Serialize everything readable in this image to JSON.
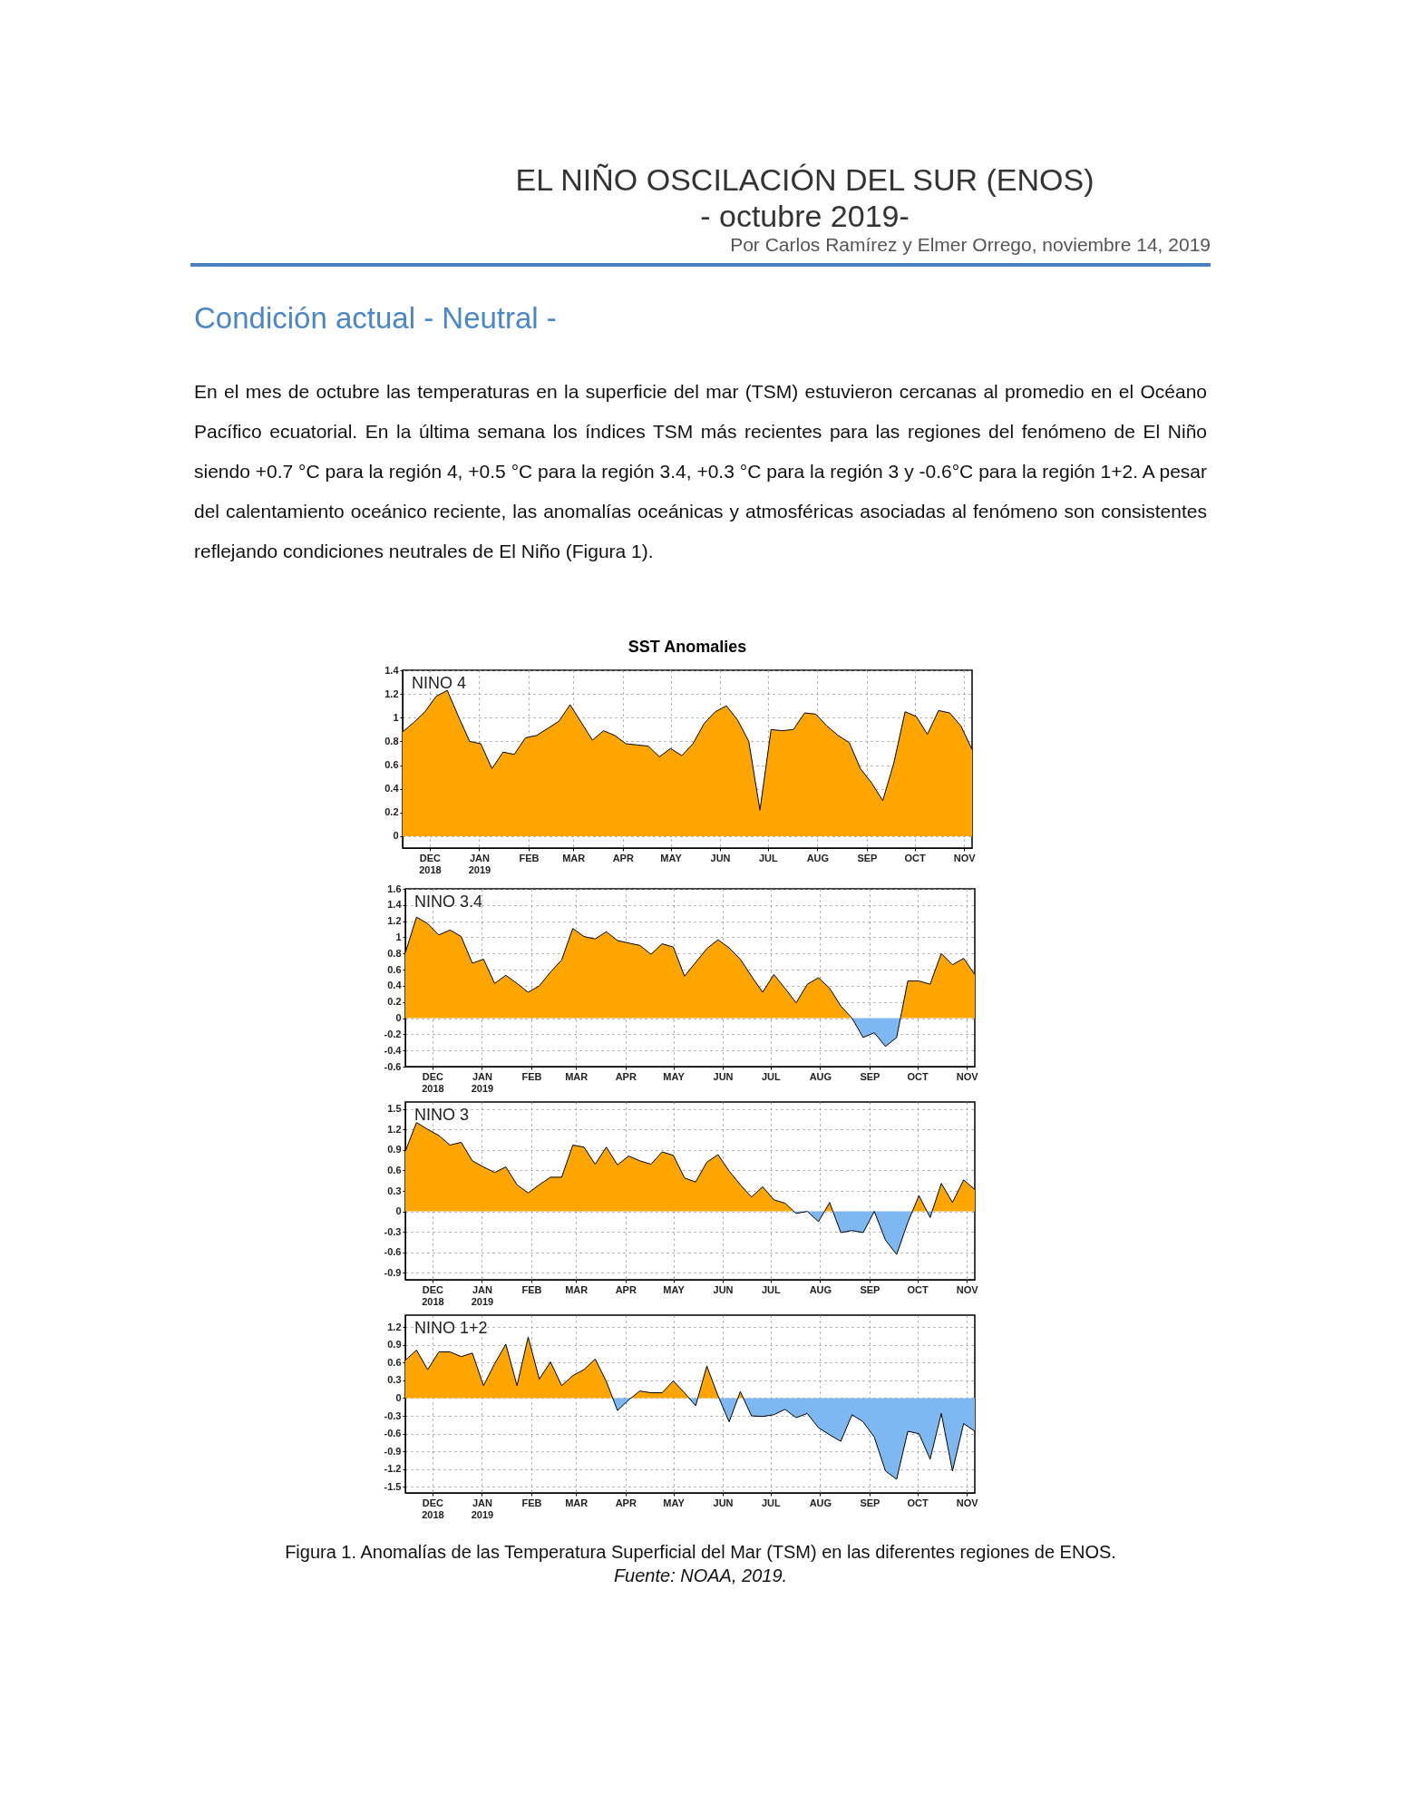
{
  "chart_data": [
    {
      "type": "other",
      "title": "EL NIÑO OSCILACIÓN DEL SUR (ENOS)",
      "subtitle": "- octubre 2019-",
      "annotations": [
        "Por Carlos Ramírez y Elmer Orrego, noviembre 14, 2019",
        "Condición actual - Neutral -",
        "En el mes de octubre las temperaturas en la superficie del mar (TSM) estuvieron cercanas al promedio en el Océano Pacífico ecuatorial. En la última semana los índices TSM más recientes para las regiones del fenómeno de El Niño siendo +0.7 °C para la región 4, +0.5 °C para la región 3.4, +0.3 °C para la región 3 y -0.6°C para la región 1+2. A pesar del calentamiento oceánico reciente, las anomalías oceánicas y atmosféricas asociadas al fenómeno son consistentes reflejando condiciones neutrales de El Niño (Figura 1)."
      ]
    },
    {
      "type": "area",
      "title": "SST Anomalies",
      "grid": true,
      "x": [
        "2018-11-14",
        "2018-11-21",
        "2018-11-28",
        "2018-12-05",
        "2018-12-12",
        "2018-12-19",
        "2018-12-26",
        "2019-01-02",
        "2019-01-09",
        "2019-01-16",
        "2019-01-23",
        "2019-01-30",
        "2019-02-06",
        "2019-02-13",
        "2019-02-20",
        "2019-02-27",
        "2019-03-06",
        "2019-03-13",
        "2019-03-20",
        "2019-03-27",
        "2019-04-03",
        "2019-04-10",
        "2019-04-17",
        "2019-04-24",
        "2019-05-01",
        "2019-05-08",
        "2019-05-15",
        "2019-05-22",
        "2019-05-29",
        "2019-06-05",
        "2019-06-12",
        "2019-06-19",
        "2019-06-26",
        "2019-07-03",
        "2019-07-10",
        "2019-07-17",
        "2019-07-24",
        "2019-07-31",
        "2019-08-07",
        "2019-08-14",
        "2019-08-21",
        "2019-08-28",
        "2019-09-04",
        "2019-09-11",
        "2019-09-18",
        "2019-09-25",
        "2019-10-02",
        "2019-10-09",
        "2019-10-16",
        "2019-10-23",
        "2019-10-30",
        "2019-11-06"
      ],
      "xlim": [
        "2018-11-14",
        "2019-11-06"
      ],
      "xticks": [
        {
          "value": "2018-12-01",
          "label": "DEC 2018"
        },
        {
          "value": "2019-01-01",
          "label": "JAN 2019"
        },
        {
          "value": "2019-02-01",
          "label": "FEB"
        },
        {
          "value": "2019-03-01",
          "label": "MAR"
        },
        {
          "value": "2019-04-01",
          "label": "APR"
        },
        {
          "value": "2019-05-01",
          "label": "MAY"
        },
        {
          "value": "2019-06-01",
          "label": "JUN"
        },
        {
          "value": "2019-07-01",
          "label": "JUL"
        },
        {
          "value": "2019-08-01",
          "label": "AUG"
        },
        {
          "value": "2019-09-01",
          "label": "SEP"
        },
        {
          "value": "2019-10-01",
          "label": "OCT"
        },
        {
          "value": "2019-11-01",
          "label": "NOV"
        }
      ],
      "ylim": [
        -0.1,
        1.4
      ],
      "yticks": [
        0,
        0.2,
        0.4,
        0.6,
        0.8,
        1,
        1.2,
        1.4
      ],
      "series": [
        {
          "name": "NINO 4",
          "colors": [
            "#ffa500",
            "#ffa500",
            "#ffa500",
            "#ffa500",
            "#ffa500",
            "#ffa500",
            "#ffa500",
            "#ffa500",
            "#ffa500",
            "#ffa500",
            "#ffa500",
            "#ffa500",
            "#ffa500",
            "#ffa500",
            "#ffa500",
            "#ffa500",
            "#ffa500",
            "#ffa500",
            "#ffa500",
            "#ffa500",
            "#ffa500",
            "#ffa500",
            "#ffa500",
            "#ffa500",
            "#ffa500",
            "#ffa500",
            "#ffa500",
            "#ffa500",
            "#ffa500",
            "#ffa500",
            "#ffa500",
            "#ffa500",
            "#ffa500",
            "#ffa500",
            "#ffa500",
            "#ffa500",
            "#ffa500",
            "#ffa500",
            "#ffa500",
            "#ffa500",
            "#ffa500",
            "#ffa500",
            "#ffa500",
            "#ffa500",
            "#ffa500",
            "#ffa500",
            "#ffa500",
            "#ffa500",
            "#ffa500",
            "#ffa500",
            "#ffa500",
            "#ffa500"
          ],
          "values": [
            0.88,
            0.96,
            1.05,
            1.18,
            1.23,
            1.01,
            0.8,
            0.78,
            0.57,
            0.71,
            0.69,
            0.83,
            0.85,
            0.91,
            0.97,
            1.11,
            0.96,
            0.81,
            0.89,
            0.85,
            0.78,
            0.77,
            0.76,
            0.67,
            0.74,
            0.68,
            0.78,
            0.95,
            1.05,
            1.1,
            0.98,
            0.8,
            0.22,
            0.9,
            0.89,
            0.9,
            1.04,
            1.03,
            0.93,
            0.85,
            0.79,
            0.57,
            0.45,
            0.3,
            0.62,
            1.05,
            1.01,
            0.86,
            1.06,
            1.04,
            0.93,
            0.73
          ]
        }
      ]
    },
    {
      "type": "area",
      "grid": true,
      "x": [
        "2018-11-14",
        "2018-11-21",
        "2018-11-28",
        "2018-12-05",
        "2018-12-12",
        "2018-12-19",
        "2018-12-26",
        "2019-01-02",
        "2019-01-09",
        "2019-01-16",
        "2019-01-23",
        "2019-01-30",
        "2019-02-06",
        "2019-02-13",
        "2019-02-20",
        "2019-02-27",
        "2019-03-06",
        "2019-03-13",
        "2019-03-20",
        "2019-03-27",
        "2019-04-03",
        "2019-04-10",
        "2019-04-17",
        "2019-04-24",
        "2019-05-01",
        "2019-05-08",
        "2019-05-15",
        "2019-05-22",
        "2019-05-29",
        "2019-06-05",
        "2019-06-12",
        "2019-06-19",
        "2019-06-26",
        "2019-07-03",
        "2019-07-10",
        "2019-07-17",
        "2019-07-24",
        "2019-07-31",
        "2019-08-07",
        "2019-08-14",
        "2019-08-21",
        "2019-08-28",
        "2019-09-04",
        "2019-09-11",
        "2019-09-18",
        "2019-09-25",
        "2019-10-02",
        "2019-10-09",
        "2019-10-16",
        "2019-10-23",
        "2019-10-30",
        "2019-11-06"
      ],
      "xlim": [
        "2018-11-14",
        "2019-11-06"
      ],
      "xticks": [
        {
          "value": "2018-12-01",
          "label": "DEC 2018"
        },
        {
          "value": "2019-01-01",
          "label": "JAN 2019"
        },
        {
          "value": "2019-02-01",
          "label": "FEB"
        },
        {
          "value": "2019-03-01",
          "label": "MAR"
        },
        {
          "value": "2019-04-01",
          "label": "APR"
        },
        {
          "value": "2019-05-01",
          "label": "MAY"
        },
        {
          "value": "2019-06-01",
          "label": "JUN"
        },
        {
          "value": "2019-07-01",
          "label": "JUL"
        },
        {
          "value": "2019-08-01",
          "label": "AUG"
        },
        {
          "value": "2019-09-01",
          "label": "SEP"
        },
        {
          "value": "2019-10-01",
          "label": "OCT"
        },
        {
          "value": "2019-11-01",
          "label": "NOV"
        }
      ],
      "ylim": [
        -0.6,
        1.6
      ],
      "yticks": [
        -0.6,
        -0.4,
        -0.2,
        0,
        0.2,
        0.4,
        0.6,
        0.8,
        1,
        1.2,
        1.4,
        1.6
      ],
      "series": [
        {
          "name": "NINO 3.4",
          "colors": [
            "#ffa500",
            "#ffa500",
            "#ffa500",
            "#ffa500",
            "#ffa500",
            "#ffa500",
            "#ffa500",
            "#ffa500",
            "#ffa500",
            "#ffa500",
            "#ffa500",
            "#ffa500",
            "#ffa500",
            "#ffa500",
            "#ffa500",
            "#ffa500",
            "#ffa500",
            "#ffa500",
            "#ffa500",
            "#ffa500",
            "#ffa500",
            "#ffa500",
            "#ffa500",
            "#ffa500",
            "#ffa500",
            "#ffa500",
            "#ffa500",
            "#ffa500",
            "#ffa500",
            "#ffa500",
            "#ffa500",
            "#ffa500",
            "#ffa500",
            "#ffa500",
            "#ffa500",
            "#ffa500",
            "#ffa500",
            "#ffa500",
            "#ffa500",
            "#ffa500",
            "#ffa500",
            "#7db8f2",
            "#7db8f2",
            "#7db8f2",
            "#7db8f2",
            "#ffa500",
            "#ffa500",
            "#ffa500",
            "#ffa500",
            "#ffa500",
            "#ffa500",
            "#ffa500"
          ],
          "values": [
            0.81,
            1.25,
            1.17,
            1.03,
            1.09,
            1.01,
            0.68,
            0.73,
            0.43,
            0.53,
            0.43,
            0.32,
            0.4,
            0.57,
            0.72,
            1.11,
            1.01,
            0.98,
            1.07,
            0.96,
            0.93,
            0.9,
            0.79,
            0.92,
            0.88,
            0.52,
            0.69,
            0.86,
            0.97,
            0.87,
            0.73,
            0.52,
            0.32,
            0.54,
            0.37,
            0.19,
            0.42,
            0.5,
            0.37,
            0.15,
            0,
            -0.24,
            -0.18,
            -0.35,
            -0.24,
            0.46,
            0.46,
            0.42,
            0.8,
            0.66,
            0.74,
            0.54
          ]
        }
      ]
    },
    {
      "type": "area",
      "grid": true,
      "x": [
        "2018-11-14",
        "2018-11-21",
        "2018-11-28",
        "2018-12-05",
        "2018-12-12",
        "2018-12-19",
        "2018-12-26",
        "2019-01-02",
        "2019-01-09",
        "2019-01-16",
        "2019-01-23",
        "2019-01-30",
        "2019-02-06",
        "2019-02-13",
        "2019-02-20",
        "2019-02-27",
        "2019-03-06",
        "2019-03-13",
        "2019-03-20",
        "2019-03-27",
        "2019-04-03",
        "2019-04-10",
        "2019-04-17",
        "2019-04-24",
        "2019-05-01",
        "2019-05-08",
        "2019-05-15",
        "2019-05-22",
        "2019-05-29",
        "2019-06-05",
        "2019-06-12",
        "2019-06-19",
        "2019-06-26",
        "2019-07-03",
        "2019-07-10",
        "2019-07-17",
        "2019-07-24",
        "2019-07-31",
        "2019-08-07",
        "2019-08-14",
        "2019-08-21",
        "2019-08-28",
        "2019-09-04",
        "2019-09-11",
        "2019-09-18",
        "2019-09-25",
        "2019-10-02",
        "2019-10-09",
        "2019-10-16",
        "2019-10-23",
        "2019-10-30",
        "2019-11-06"
      ],
      "xlim": [
        "2018-11-14",
        "2019-11-06"
      ],
      "xticks": [
        {
          "value": "2018-12-01",
          "label": "DEC 2018"
        },
        {
          "value": "2019-01-01",
          "label": "JAN 2019"
        },
        {
          "value": "2019-02-01",
          "label": "FEB"
        },
        {
          "value": "2019-03-01",
          "label": "MAR"
        },
        {
          "value": "2019-04-01",
          "label": "APR"
        },
        {
          "value": "2019-05-01",
          "label": "MAY"
        },
        {
          "value": "2019-06-01",
          "label": "JUN"
        },
        {
          "value": "2019-07-01",
          "label": "JUL"
        },
        {
          "value": "2019-08-01",
          "label": "AUG"
        },
        {
          "value": "2019-09-01",
          "label": "SEP"
        },
        {
          "value": "2019-10-01",
          "label": "OCT"
        },
        {
          "value": "2019-11-01",
          "label": "NOV"
        }
      ],
      "ylim": [
        -1,
        1.6
      ],
      "yticks": [
        -0.9,
        -0.6,
        -0.3,
        0,
        0.3,
        0.6,
        0.9,
        1.2,
        1.5
      ],
      "series": [
        {
          "name": "NINO 3",
          "colors": [
            "#ffa500",
            "#ffa500",
            "#ffa500",
            "#ffa500",
            "#ffa500",
            "#ffa500",
            "#ffa500",
            "#ffa500",
            "#ffa500",
            "#ffa500",
            "#ffa500",
            "#ffa500",
            "#ffa500",
            "#ffa500",
            "#ffa500",
            "#ffa500",
            "#ffa500",
            "#ffa500",
            "#ffa500",
            "#ffa500",
            "#ffa500",
            "#ffa500",
            "#ffa500",
            "#ffa500",
            "#ffa500",
            "#ffa500",
            "#ffa500",
            "#ffa500",
            "#ffa500",
            "#ffa500",
            "#ffa500",
            "#ffa500",
            "#ffa500",
            "#ffa500",
            "#ffa500",
            "#7db8f2",
            "#ffa500",
            "#7db8f2",
            "#ffa500",
            "#7db8f2",
            "#7db8f2",
            "#7db8f2",
            "#ffa500",
            "#7db8f2",
            "#7db8f2",
            "#7db8f2",
            "#ffa500",
            "#7db8f2",
            "#ffa500",
            "#ffa500",
            "#ffa500",
            "#ffa500"
          ],
          "values": [
            0.88,
            1.3,
            1.2,
            1.11,
            0.97,
            1.01,
            0.74,
            0.65,
            0.57,
            0.65,
            0.39,
            0.27,
            0.39,
            0.5,
            0.5,
            0.97,
            0.94,
            0.69,
            0.94,
            0.68,
            0.81,
            0.74,
            0.69,
            0.87,
            0.82,
            0.49,
            0.43,
            0.72,
            0.83,
            0.59,
            0.39,
            0.21,
            0.36,
            0.17,
            0.12,
            -0.03,
            0,
            -0.15,
            0.13,
            -0.31,
            -0.28,
            -0.31,
            0,
            -0.42,
            -0.63,
            -0.16,
            0.23,
            -0.09,
            0.41,
            0.13,
            0.46,
            0.32
          ]
        }
      ]
    },
    {
      "type": "area",
      "grid": true,
      "x": [
        "2018-11-14",
        "2018-11-21",
        "2018-11-28",
        "2018-12-05",
        "2018-12-12",
        "2018-12-19",
        "2018-12-26",
        "2019-01-02",
        "2019-01-09",
        "2019-01-16",
        "2019-01-23",
        "2019-01-30",
        "2019-02-06",
        "2019-02-13",
        "2019-02-20",
        "2019-02-27",
        "2019-03-06",
        "2019-03-13",
        "2019-03-20",
        "2019-03-27",
        "2019-04-03",
        "2019-04-10",
        "2019-04-17",
        "2019-04-24",
        "2019-05-01",
        "2019-05-08",
        "2019-05-15",
        "2019-05-22",
        "2019-05-29",
        "2019-06-05",
        "2019-06-12",
        "2019-06-19",
        "2019-06-26",
        "2019-07-03",
        "2019-07-10",
        "2019-07-17",
        "2019-07-24",
        "2019-07-31",
        "2019-08-07",
        "2019-08-14",
        "2019-08-21",
        "2019-08-28",
        "2019-09-04",
        "2019-09-11",
        "2019-09-18",
        "2019-09-25",
        "2019-10-02",
        "2019-10-09",
        "2019-10-16",
        "2019-10-23",
        "2019-10-30",
        "2019-11-06"
      ],
      "xlim": [
        "2018-11-14",
        "2019-11-06"
      ],
      "xticks": [
        {
          "value": "2018-12-01",
          "label": "DEC 2018"
        },
        {
          "value": "2019-01-01",
          "label": "JAN 2019"
        },
        {
          "value": "2019-02-01",
          "label": "FEB"
        },
        {
          "value": "2019-03-01",
          "label": "MAR"
        },
        {
          "value": "2019-04-01",
          "label": "APR"
        },
        {
          "value": "2019-05-01",
          "label": "MAY"
        },
        {
          "value": "2019-06-01",
          "label": "JUN"
        },
        {
          "value": "2019-07-01",
          "label": "JUL"
        },
        {
          "value": "2019-08-01",
          "label": "AUG"
        },
        {
          "value": "2019-09-01",
          "label": "SEP"
        },
        {
          "value": "2019-10-01",
          "label": "OCT"
        },
        {
          "value": "2019-11-01",
          "label": "NOV"
        }
      ],
      "ylim": [
        -1.6,
        1.4
      ],
      "yticks": [
        -1.5,
        -1.2,
        -0.9,
        -0.6,
        -0.3,
        0,
        0.3,
        0.6,
        0.9,
        1.2
      ],
      "series": [
        {
          "name": "NINO 1+2",
          "colors": [
            "#ffa500",
            "#ffa500",
            "#ffa500",
            "#ffa500",
            "#ffa500",
            "#ffa500",
            "#ffa500",
            "#ffa500",
            "#ffa500",
            "#ffa500",
            "#ffa500",
            "#ffa500",
            "#ffa500",
            "#ffa500",
            "#ffa500",
            "#ffa500",
            "#ffa500",
            "#ffa500",
            "#ffa500",
            "#7db8f2",
            "#7db8f2",
            "#ffa500",
            "#ffa500",
            "#ffa500",
            "#ffa500",
            "#ffa500",
            "#7db8f2",
            "#ffa500",
            "#ffa500",
            "#7db8f2",
            "#ffa500",
            "#7db8f2",
            "#7db8f2",
            "#7db8f2",
            "#7db8f2",
            "#7db8f2",
            "#7db8f2",
            "#7db8f2",
            "#7db8f2",
            "#7db8f2",
            "#7db8f2",
            "#7db8f2",
            "#7db8f2",
            "#7db8f2",
            "#7db8f2",
            "#7db8f2",
            "#7db8f2",
            "#7db8f2",
            "#7db8f2",
            "#7db8f2",
            "#7db8f2",
            "#7db8f2"
          ],
          "values": [
            0.64,
            0.81,
            0.48,
            0.78,
            0.78,
            0.7,
            0.76,
            0.21,
            0.58,
            0.91,
            0.21,
            1.03,
            0.32,
            0.61,
            0.21,
            0.38,
            0.48,
            0.66,
            0.28,
            -0.21,
            -0.03,
            0.12,
            0.09,
            0.09,
            0.29,
            0.09,
            -0.13,
            0.54,
            0.04,
            -0.4,
            0.11,
            -0.3,
            -0.31,
            -0.28,
            -0.19,
            -0.33,
            -0.26,
            -0.5,
            -0.62,
            -0.73,
            -0.28,
            -0.4,
            -0.66,
            -1.23,
            -1.37,
            -0.56,
            -0.6,
            -1.03,
            -0.26,
            -1.23,
            -0.43,
            -0.56
          ]
        }
      ],
      "annotations": [
        "Figura 1. Anomalías de las Temperatura Superficial del Mar (TSM) en las diferentes regiones de ENOS.",
        "Fuente: NOAA, 2019."
      ]
    }
  ]
}
